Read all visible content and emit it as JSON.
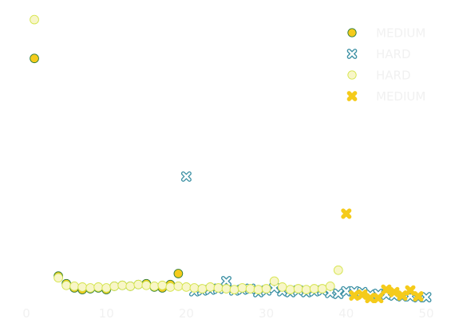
{
  "chart_data": {
    "type": "scatter",
    "title": "",
    "xlabel": "",
    "ylabel": "",
    "xlim": [
      -1,
      51
    ],
    "ylim": [
      0,
      34.6
    ],
    "xticks": [
      0,
      10,
      20,
      30,
      40,
      50
    ],
    "grid": false,
    "legend_position": "top-right",
    "series": [
      {
        "name": "MEDIUM",
        "marker": "circle",
        "fill": "#f5cb1b",
        "stroke": "#2e7d3a",
        "points": [
          [
            1,
            29.0
          ],
          [
            4,
            3.2
          ],
          [
            5,
            2.3
          ],
          [
            6,
            1.8
          ],
          [
            7,
            1.6
          ],
          [
            8,
            1.7
          ],
          [
            9,
            1.8
          ],
          [
            10,
            1.6
          ],
          [
            11,
            2.0
          ],
          [
            12,
            2.1
          ],
          [
            13,
            2.0
          ],
          [
            14,
            2.2
          ],
          [
            15,
            2.3
          ],
          [
            16,
            1.9
          ],
          [
            17,
            1.8
          ],
          [
            18,
            2.2
          ],
          [
            19,
            3.5
          ]
        ]
      },
      {
        "name": "HARD",
        "marker": "x",
        "fill": "#ffffff",
        "stroke": "#3a8fa3",
        "points": [
          [
            20,
            15.0
          ],
          [
            21,
            1.4
          ],
          [
            22,
            1.5
          ],
          [
            23,
            1.6
          ],
          [
            24,
            1.7
          ],
          [
            25,
            2.6
          ],
          [
            26,
            1.5
          ],
          [
            27,
            1.6
          ],
          [
            28,
            1.7
          ],
          [
            29,
            1.3
          ],
          [
            30,
            1.5
          ],
          [
            31,
            1.8
          ],
          [
            32,
            1.4
          ],
          [
            33,
            1.3
          ],
          [
            34,
            1.5
          ],
          [
            35,
            1.3
          ],
          [
            36,
            1.4
          ],
          [
            37,
            1.5
          ],
          [
            38,
            1.2
          ],
          [
            39,
            1.1
          ],
          [
            40,
            1.4
          ],
          [
            41,
            1.4
          ],
          [
            42,
            1.3
          ],
          [
            43,
            1.0
          ],
          [
            44,
            1.1
          ],
          [
            45,
            1.0
          ],
          [
            46,
            0.9
          ],
          [
            47,
            0.8
          ],
          [
            48,
            0.8
          ],
          [
            49,
            0.7
          ],
          [
            50,
            0.7
          ]
        ]
      },
      {
        "name": "HARD",
        "marker": "circle",
        "fill": "#f8f6c8",
        "stroke": "#d4e44a",
        "points": [
          [
            1,
            33.6
          ],
          [
            4,
            3.0
          ],
          [
            5,
            2.1
          ],
          [
            6,
            2.0
          ],
          [
            7,
            1.9
          ],
          [
            8,
            1.8
          ],
          [
            9,
            1.9
          ],
          [
            10,
            1.8
          ],
          [
            11,
            2.0
          ],
          [
            12,
            2.1
          ],
          [
            13,
            2.0
          ],
          [
            14,
            2.2
          ],
          [
            15,
            2.1
          ],
          [
            16,
            2.0
          ],
          [
            17,
            2.1
          ],
          [
            18,
            1.9
          ],
          [
            19,
            2.0
          ],
          [
            20,
            1.9
          ],
          [
            21,
            1.8
          ],
          [
            22,
            1.7
          ],
          [
            23,
            1.9
          ],
          [
            24,
            1.8
          ],
          [
            25,
            1.7
          ],
          [
            26,
            1.6
          ],
          [
            27,
            1.8
          ],
          [
            28,
            1.7
          ],
          [
            29,
            1.6
          ],
          [
            30,
            1.7
          ],
          [
            31,
            2.6
          ],
          [
            32,
            1.9
          ],
          [
            33,
            1.6
          ],
          [
            34,
            1.7
          ],
          [
            35,
            1.6
          ],
          [
            36,
            1.7
          ],
          [
            37,
            1.7
          ],
          [
            38,
            2.0
          ],
          [
            39,
            3.9
          ]
        ]
      },
      {
        "name": "MEDIUM",
        "marker": "x",
        "fill": "#f5cb1b",
        "stroke": "#f5cb1b",
        "points": [
          [
            40,
            10.6
          ],
          [
            41,
            0.9
          ],
          [
            42,
            1.0
          ],
          [
            43,
            0.6
          ],
          [
            44,
            0.6
          ],
          [
            45,
            1.6
          ],
          [
            46,
            1.3
          ],
          [
            47,
            0.9
          ],
          [
            48,
            1.5
          ],
          [
            49,
            0.8
          ]
        ]
      }
    ]
  }
}
